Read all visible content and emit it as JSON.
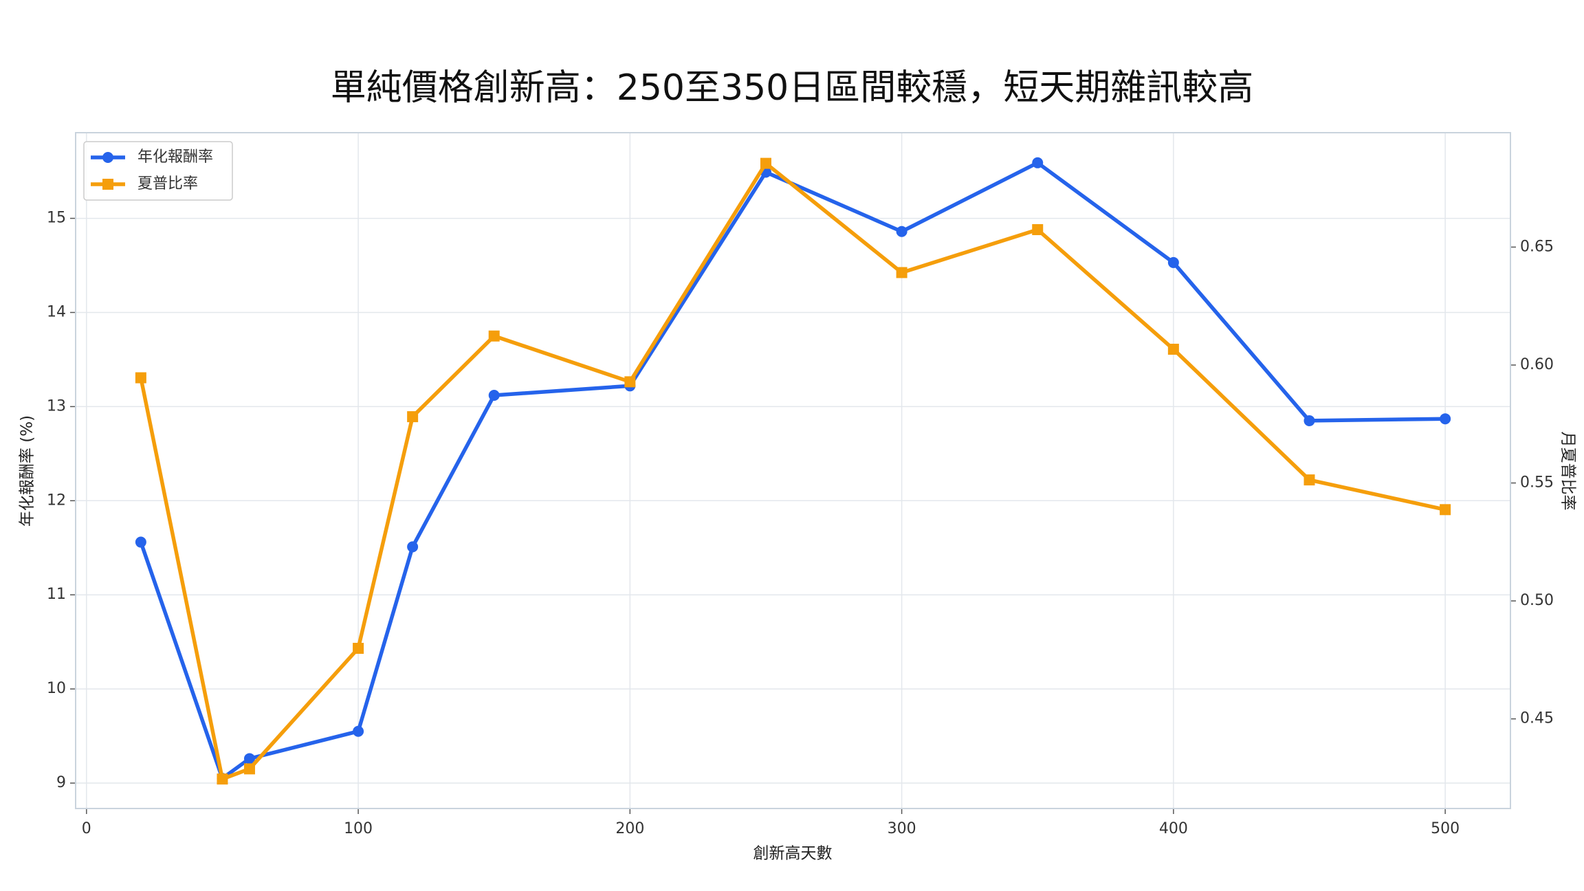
{
  "chart_data": {
    "type": "line",
    "title": "單純價格創新高：250至350日區間較穩，短天期雜訊較高",
    "x_label": "創新高天數",
    "y_label": "年化報酬率 (%)",
    "y2_label": "月夏普比率",
    "x": [
      20,
      50,
      60,
      100,
      120,
      150,
      200,
      250,
      300,
      350,
      400,
      450,
      500
    ],
    "series": [
      {
        "name": "年化報酬率",
        "color": "#2563eb",
        "marker": "circle",
        "values": [
          11.56,
          9.05,
          9.26,
          9.55,
          11.51,
          13.12,
          13.22,
          15.49,
          14.86,
          15.59,
          14.53,
          12.85,
          12.87
        ]
      },
      {
        "name": "夏普比率",
        "color": "#f59e0b",
        "marker": "square",
        "axis": "y2",
        "values": [
          0.5946,
          0.4245,
          0.4288,
          0.4799,
          0.5781,
          0.6123,
          0.5929,
          0.6855,
          0.6392,
          0.6574,
          0.6067,
          0.5513,
          0.5387
        ]
      }
    ],
    "xlim": [
      -4,
      524
    ],
    "xticks": [
      0,
      100,
      200,
      300,
      400,
      500
    ],
    "ylim": [
      8.73,
      15.91
    ],
    "yticks": [
      9,
      10,
      11,
      12,
      13,
      14,
      15
    ],
    "y2lim": [
      0.412,
      0.6985
    ],
    "y2ticks": [
      {
        "value": 0.45,
        "label": "0.45"
      },
      {
        "value": 0.5,
        "label": "0.50"
      },
      {
        "value": 0.55,
        "label": "0.55"
      },
      {
        "value": 0.6,
        "label": "0.60"
      },
      {
        "value": 0.65,
        "label": "0.65"
      }
    ],
    "grid": true,
    "legend": "upper-left"
  }
}
